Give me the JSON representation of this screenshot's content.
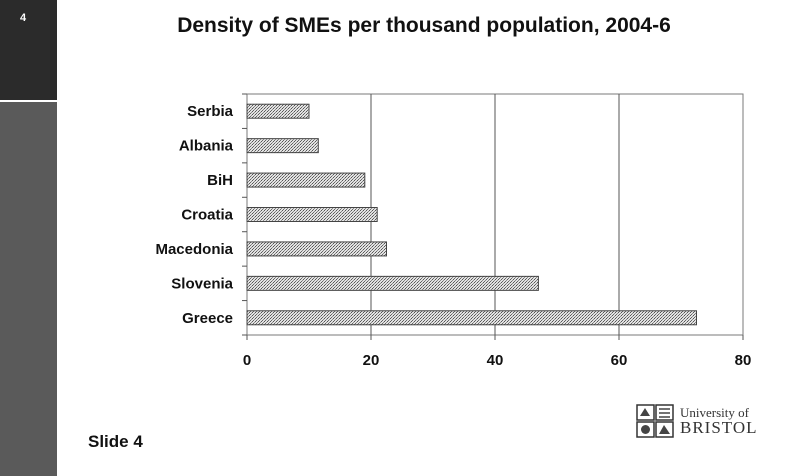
{
  "slide": {
    "number": "4",
    "footer": "Slide 4"
  },
  "logo": {
    "line1": "University of",
    "line2": "BRISTOL"
  },
  "chart_data": {
    "type": "bar",
    "orientation": "horizontal",
    "title": "Density of SMEs per thousand population, 2004-6",
    "categories": [
      "Serbia",
      "Albania",
      "BiH",
      "Croatia",
      "Macedonia",
      "Slovenia",
      "Greece"
    ],
    "values": [
      10,
      11.5,
      19,
      21,
      22.5,
      47,
      72.5
    ],
    "xlim": [
      0,
      80
    ],
    "xticks": [
      0,
      20,
      40,
      60,
      80
    ],
    "grid": "vertical",
    "bar_fill": "stippled grey"
  }
}
